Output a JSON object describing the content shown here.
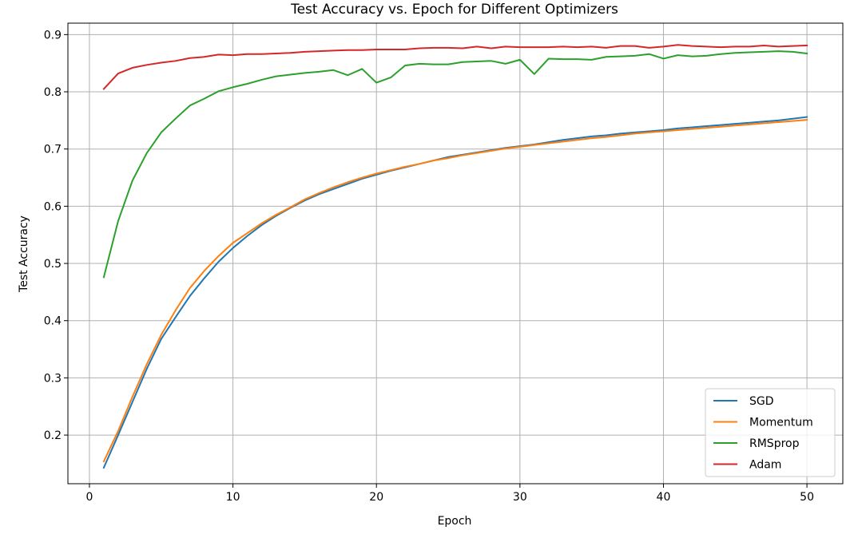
{
  "chart_data": {
    "type": "line",
    "title": "Test Accuracy vs. Epoch for Different Optimizers",
    "xlabel": "Epoch",
    "ylabel": "Test Accuracy",
    "xlim": [
      -1.5,
      52.5
    ],
    "ylim": [
      0.115,
      0.92
    ],
    "xticks": [
      0,
      10,
      20,
      30,
      40,
      50
    ],
    "yticks": [
      0.2,
      0.3,
      0.4,
      0.5,
      0.6,
      0.7,
      0.8,
      0.9
    ],
    "grid": true,
    "legend_position": "lower-right",
    "x": [
      1,
      2,
      3,
      4,
      5,
      6,
      7,
      8,
      9,
      10,
      11,
      12,
      13,
      14,
      15,
      16,
      17,
      18,
      19,
      20,
      21,
      22,
      23,
      24,
      25,
      26,
      27,
      28,
      29,
      30,
      31,
      32,
      33,
      34,
      35,
      36,
      37,
      38,
      39,
      40,
      41,
      42,
      43,
      44,
      45,
      46,
      47,
      48,
      49,
      50
    ],
    "series": [
      {
        "name": "SGD",
        "color": "#1f77b4",
        "values": [
          0.143,
          0.2,
          0.258,
          0.316,
          0.368,
          0.406,
          0.443,
          0.474,
          0.503,
          0.527,
          0.548,
          0.567,
          0.583,
          0.597,
          0.61,
          0.621,
          0.63,
          0.639,
          0.648,
          0.655,
          0.662,
          0.668,
          0.674,
          0.68,
          0.686,
          0.69,
          0.694,
          0.698,
          0.702,
          0.705,
          0.708,
          0.712,
          0.716,
          0.719,
          0.722,
          0.724,
          0.727,
          0.729,
          0.731,
          0.733,
          0.736,
          0.738,
          0.74,
          0.742,
          0.744,
          0.746,
          0.748,
          0.75,
          0.753,
          0.756
        ]
      },
      {
        "name": "Momentum",
        "color": "#ff7f0e",
        "values": [
          0.154,
          0.207,
          0.267,
          0.324,
          0.375,
          0.418,
          0.457,
          0.487,
          0.513,
          0.536,
          0.553,
          0.57,
          0.585,
          0.598,
          0.612,
          0.623,
          0.633,
          0.642,
          0.65,
          0.657,
          0.663,
          0.669,
          0.674,
          0.68,
          0.684,
          0.689,
          0.693,
          0.697,
          0.701,
          0.704,
          0.707,
          0.71,
          0.713,
          0.716,
          0.719,
          0.721,
          0.724,
          0.727,
          0.729,
          0.731,
          0.733,
          0.735,
          0.737,
          0.739,
          0.741,
          0.743,
          0.745,
          0.747,
          0.749,
          0.751
        ]
      },
      {
        "name": "RMSprop",
        "color": "#2ca02c",
        "values": [
          0.476,
          0.574,
          0.645,
          0.693,
          0.729,
          0.753,
          0.776,
          0.788,
          0.801,
          0.808,
          0.814,
          0.821,
          0.827,
          0.83,
          0.833,
          0.835,
          0.838,
          0.829,
          0.84,
          0.816,
          0.825,
          0.846,
          0.849,
          0.848,
          0.848,
          0.852,
          0.853,
          0.854,
          0.849,
          0.856,
          0.831,
          0.858,
          0.857,
          0.857,
          0.856,
          0.861,
          0.862,
          0.863,
          0.866,
          0.858,
          0.864,
          0.862,
          0.863,
          0.866,
          0.868,
          0.869,
          0.87,
          0.871,
          0.87,
          0.867
        ]
      },
      {
        "name": "Adam",
        "color": "#d62728",
        "values": [
          0.805,
          0.832,
          0.842,
          0.847,
          0.851,
          0.854,
          0.859,
          0.861,
          0.865,
          0.864,
          0.866,
          0.866,
          0.867,
          0.868,
          0.87,
          0.871,
          0.872,
          0.873,
          0.873,
          0.874,
          0.874,
          0.874,
          0.876,
          0.877,
          0.877,
          0.876,
          0.879,
          0.876,
          0.879,
          0.878,
          0.878,
          0.878,
          0.879,
          0.878,
          0.879,
          0.877,
          0.88,
          0.88,
          0.877,
          0.879,
          0.882,
          0.88,
          0.879,
          0.878,
          0.879,
          0.879,
          0.881,
          0.879,
          0.88,
          0.881
        ]
      }
    ]
  }
}
